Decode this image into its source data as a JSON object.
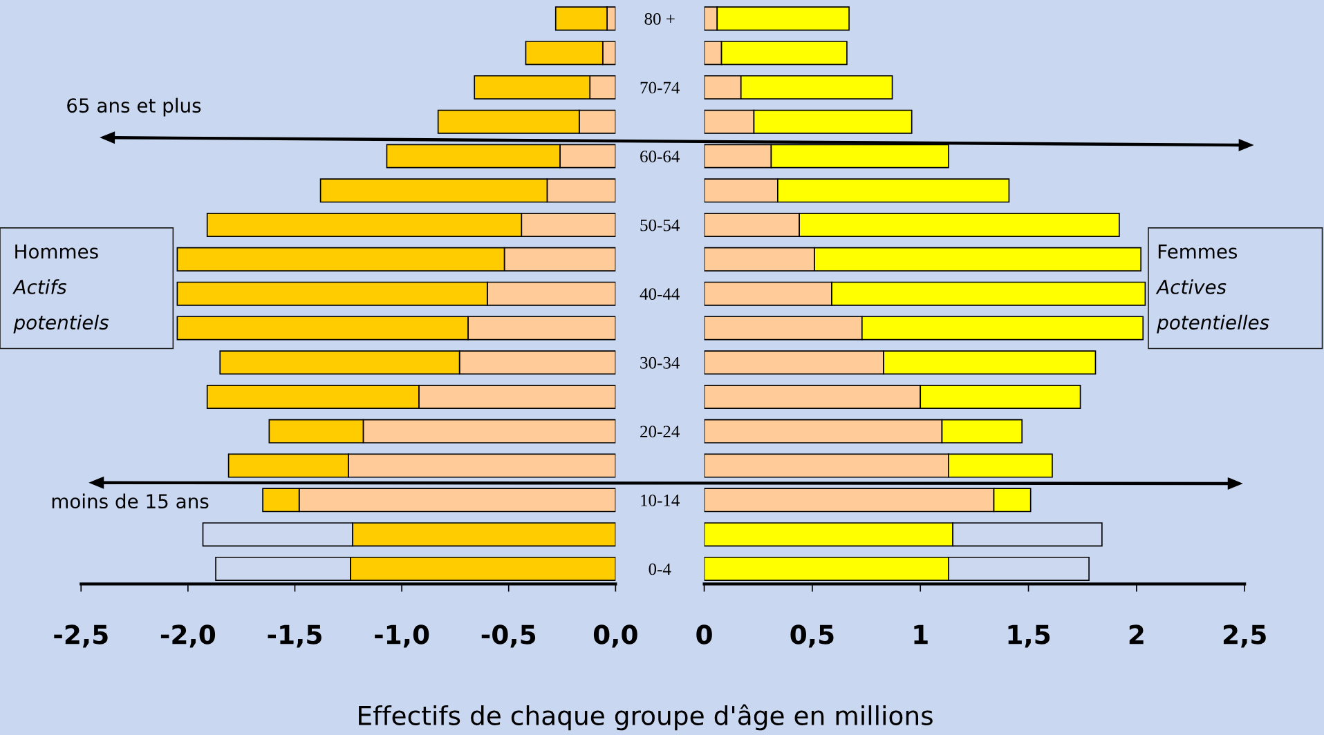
{
  "chart_data": [
    {
      "type": "bar",
      "orientation": "horizontal",
      "stacked": true,
      "xlabel": "Effectifs de chaque groupe d'âge en millions",
      "categories": [
        "80 +",
        null,
        "70-74",
        null,
        "60-64",
        null,
        "50-54",
        null,
        "40-44",
        null,
        "30-34",
        null,
        "20-24",
        null,
        "10-14",
        null,
        "0-4"
      ],
      "series": [
        {
          "color": "#ffcc99",
          "values": [
            -0.04,
            -0.06,
            -0.12,
            -0.17,
            -0.26,
            -0.32,
            -0.44,
            -0.52,
            -0.6,
            -0.69,
            -0.73,
            -0.92,
            -1.18,
            -1.25,
            -1.48,
            null,
            null
          ]
        },
        {
          "color": "#ffcc00",
          "values": [
            -0.24,
            -0.36,
            -0.54,
            -0.66,
            -0.81,
            -1.06,
            -1.47,
            -1.53,
            -1.45,
            -1.36,
            -1.12,
            -0.99,
            -0.44,
            -0.56,
            -0.17,
            -1.23,
            -1.24
          ]
        },
        {
          "color": "#ccd8f0",
          "values": [
            null,
            null,
            null,
            null,
            null,
            null,
            null,
            null,
            null,
            null,
            null,
            null,
            null,
            null,
            null,
            -0.7,
            -0.63
          ]
        }
      ],
      "xlim": [
        -2.5,
        0.0
      ],
      "xticks": [
        {
          "value": -2.5,
          "label": "-2,5"
        },
        {
          "value": -2.0,
          "label": "-2,0"
        },
        {
          "value": -1.5,
          "label": "-1,5"
        },
        {
          "value": -1.0,
          "label": "-1,0"
        },
        {
          "value": -0.5,
          "label": "-0,5"
        },
        {
          "value": 0.0,
          "label": "0,0"
        }
      ],
      "annotations": [
        "65 ans et plus",
        "moins de 15 ans",
        "Hommes\nActifs\npotentiels"
      ]
    },
    {
      "type": "bar",
      "orientation": "horizontal",
      "stacked": true,
      "tick_labels": "x",
      "categories": [
        null,
        null,
        null,
        null,
        null,
        null,
        null,
        null,
        null,
        null,
        null,
        null,
        null,
        null,
        null,
        null,
        null
      ],
      "series": [
        {
          "color": "#ffcc99",
          "values": [
            0.06,
            0.08,
            0.17,
            0.23,
            0.31,
            0.34,
            0.44,
            0.51,
            0.59,
            0.73,
            0.83,
            1.0,
            1.1,
            1.13,
            1.34,
            null,
            null
          ]
        },
        {
          "color": "#ffff00",
          "values": [
            0.61,
            0.58,
            0.7,
            0.73,
            0.82,
            1.07,
            1.48,
            1.51,
            1.45,
            1.3,
            0.98,
            0.74,
            0.37,
            0.48,
            0.17,
            1.15,
            1.13
          ]
        },
        {
          "color": "#ccd8f0",
          "values": [
            null,
            null,
            null,
            null,
            null,
            null,
            null,
            null,
            null,
            null,
            null,
            null,
            null,
            null,
            null,
            0.69,
            0.65
          ]
        }
      ],
      "xlim": [
        0,
        2.5
      ],
      "xticks": [
        0,
        {
          "value": 0.5,
          "label": "0,5"
        },
        1,
        {
          "value": 1.5,
          "label": "1,5"
        },
        2,
        {
          "value": 2.5,
          "label": "2,5"
        }
      ],
      "annotations": [
        "Femmes\nActives\npotentielles"
      ]
    }
  ]
}
